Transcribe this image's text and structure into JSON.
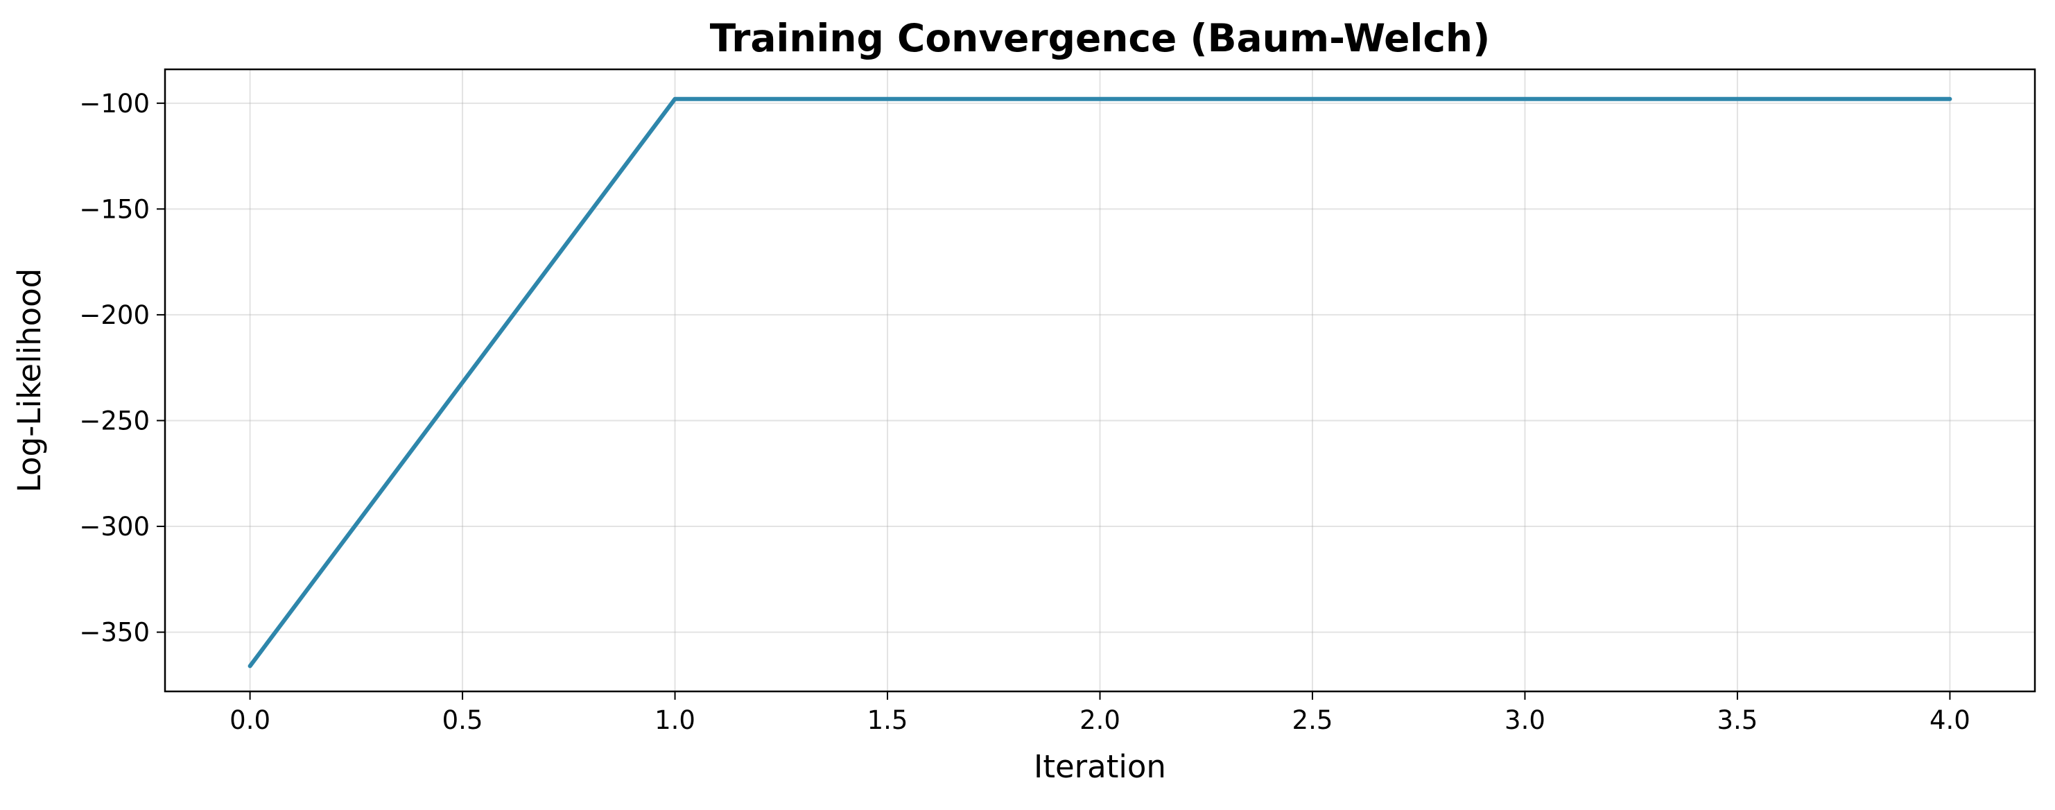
{
  "chart_data": {
    "type": "line",
    "title": "Training Convergence (Baum-Welch)",
    "xlabel": "Iteration",
    "ylabel": "Log-Likelihood",
    "xlim": [
      -0.2,
      4.2
    ],
    "ylim": [
      -378,
      -84
    ],
    "xticks": [
      0.0,
      0.5,
      1.0,
      1.5,
      2.0,
      2.5,
      3.0,
      3.5,
      4.0
    ],
    "xtick_labels": [
      "0.0",
      "0.5",
      "1.0",
      "1.5",
      "2.0",
      "2.5",
      "3.0",
      "3.5",
      "4.0"
    ],
    "yticks": [
      -100,
      -150,
      -200,
      -250,
      -300,
      -350
    ],
    "ytick_labels": [
      "−100",
      "−150",
      "−200",
      "−250",
      "−300",
      "−350"
    ],
    "grid": true,
    "series": [
      {
        "color": "#2e86ab",
        "x": [
          0,
          1,
          2,
          3,
          4
        ],
        "y": [
          -366,
          -98,
          -98,
          -98,
          -98
        ]
      }
    ]
  }
}
